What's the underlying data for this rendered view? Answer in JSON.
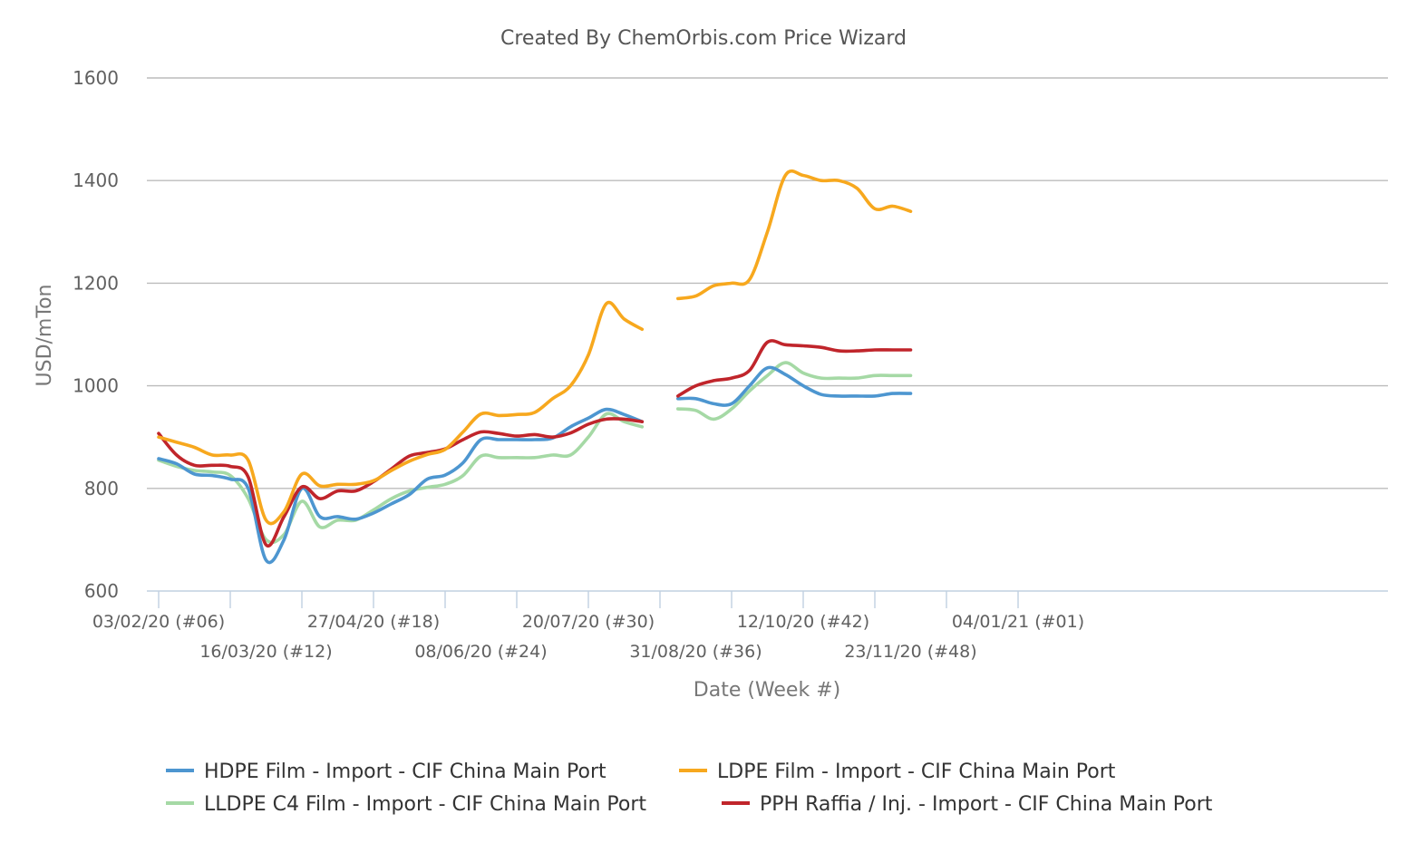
{
  "chart_data": {
    "type": "line",
    "title": "Created By ChemOrbis.com Price Wizard",
    "xlabel": "Date (Week #)",
    "ylabel": "USD/mTon",
    "ylim": [
      600,
      1600
    ],
    "yticks": [
      600,
      800,
      1000,
      1200,
      1400,
      1600
    ],
    "grid": true,
    "legend_position": "bottom",
    "x_tick_labels": [
      "03/02/20 (#06)",
      "16/03/20 (#12)",
      "27/04/20 (#18)",
      "08/06/20 (#24)",
      "20/07/20 (#30)",
      "31/08/20 (#36)",
      "12/10/20 (#42)",
      "23/11/20 (#48)",
      "04/01/21 (#01)"
    ],
    "x": [
      "03/02/20",
      "10/02/20",
      "17/02/20",
      "24/02/20",
      "02/03/20",
      "09/03/20",
      "16/03/20",
      "23/03/20",
      "30/03/20",
      "06/04/20",
      "13/04/20",
      "20/04/20",
      "27/04/20",
      "04/05/20",
      "11/05/20",
      "18/05/20",
      "25/05/20",
      "01/06/20",
      "08/06/20",
      "15/06/20",
      "22/06/20",
      "29/06/20",
      "06/07/20",
      "13/07/20",
      "20/07/20",
      "27/07/20",
      "03/08/20",
      "10/08/20",
      "17/08/20",
      "24/08/20",
      "31/08/20",
      "07/09/20",
      "14/09/20",
      "21/09/20",
      "28/09/20",
      "05/10/20",
      "12/10/20",
      "19/10/20",
      "26/10/20",
      "02/11/20",
      "09/11/20",
      "16/11/20",
      "23/11/20",
      "30/11/20",
      "07/12/20",
      "14/12/20",
      "21/12/20",
      "28/12/20",
      "04/01/21",
      "11/01/21",
      "18/01/21"
    ],
    "series": [
      {
        "name": "HDPE Film - Import - CIF China Main Port",
        "color": "#4d96d0",
        "values": [
          858,
          848,
          828,
          825,
          818,
          800,
          660,
          700,
          800,
          745,
          745,
          740,
          752,
          770,
          788,
          818,
          826,
          850,
          895,
          895,
          895,
          895,
          898,
          920,
          937,
          954,
          944,
          930,
          null,
          975,
          975,
          965,
          965,
          1000,
          1035,
          1022,
          1000,
          983,
          980,
          980,
          980,
          985,
          985,
          null,
          null,
          null,
          null,
          null,
          null,
          null,
          null
        ]
      },
      {
        "name": "LDPE Film - Import - CIF China Main Port",
        "color": "#f7a81e",
        "values": [
          900,
          890,
          880,
          865,
          865,
          855,
          738,
          755,
          828,
          805,
          808,
          808,
          815,
          835,
          853,
          866,
          876,
          910,
          945,
          942,
          944,
          948,
          975,
          1000,
          1060,
          1160,
          1130,
          1110,
          null,
          1170,
          1175,
          1195,
          1200,
          1207,
          1300,
          1410,
          1410,
          1400,
          1400,
          1385,
          1345,
          1350,
          1340,
          null,
          null,
          null,
          null,
          null,
          null,
          null,
          null
        ]
      },
      {
        "name": "LLDPE C4 Film - Import - CIF China Main Port",
        "color": "#a5d9a5",
        "values": [
          855,
          843,
          835,
          832,
          825,
          780,
          700,
          710,
          775,
          725,
          738,
          738,
          758,
          780,
          795,
          802,
          808,
          825,
          863,
          860,
          860,
          860,
          865,
          865,
          900,
          945,
          930,
          920,
          null,
          955,
          952,
          935,
          955,
          990,
          1020,
          1045,
          1025,
          1015,
          1015,
          1015,
          1020,
          1020,
          1020,
          null,
          null,
          null,
          null,
          null,
          null,
          null,
          null
        ]
      },
      {
        "name": "PPH Raffia / Inj. - Import - CIF China Main Port",
        "color": "#c0252b",
        "values": [
          907,
          865,
          845,
          845,
          843,
          822,
          690,
          745,
          803,
          780,
          795,
          795,
          813,
          838,
          863,
          870,
          877,
          895,
          910,
          907,
          902,
          905,
          900,
          908,
          925,
          935,
          935,
          930,
          null,
          980,
          1000,
          1010,
          1015,
          1030,
          1085,
          1080,
          1078,
          1075,
          1068,
          1068,
          1070,
          1070,
          1070,
          null,
          null,
          null,
          null,
          null,
          null,
          null,
          null
        ]
      }
    ]
  }
}
